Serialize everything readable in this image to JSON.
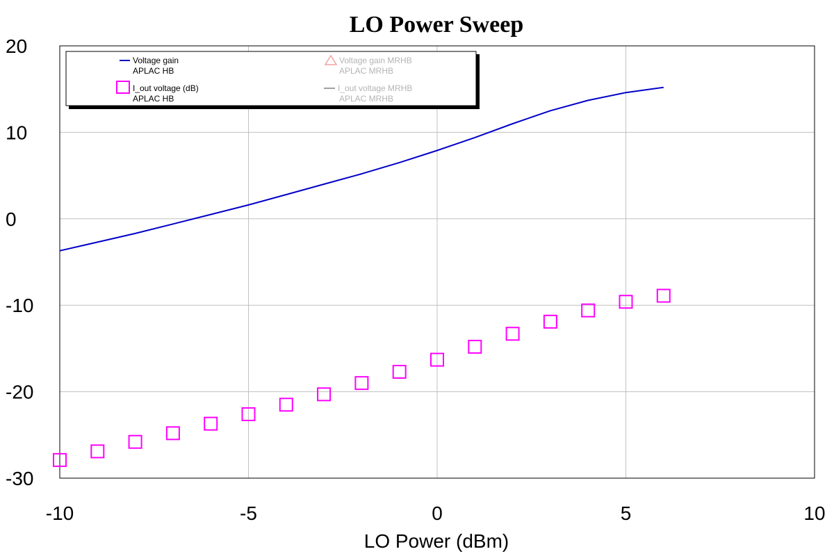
{
  "chart_data": {
    "type": "line",
    "title": "LO Power Sweep",
    "xlabel": "LO Power (dBm)",
    "ylabel": "",
    "xlim": [
      -10,
      10
    ],
    "ylim": [
      -30,
      20
    ],
    "xticks": [
      -10,
      -5,
      0,
      5,
      10
    ],
    "yticks": [
      -30,
      -20,
      -10,
      0,
      10,
      20
    ],
    "xtick_labels": [
      "-10",
      "-5",
      "0",
      "5",
      "10"
    ],
    "ytick_labels": [
      "-30",
      "-20",
      "-10",
      "0",
      "10",
      "20"
    ],
    "grid": true,
    "legend_placement": "top-left",
    "series": [
      {
        "name": "Voltage gain",
        "sub": "APLAC HB",
        "style": "line",
        "color": "#0000c8",
        "x": [
          -10,
          -9,
          -8,
          -7,
          -6,
          -5,
          -4,
          -3,
          -2,
          -1,
          0,
          1,
          2,
          3,
          4,
          5,
          6
        ],
        "y": [
          -3.7,
          -2.7,
          -1.7,
          -0.6,
          0.5,
          1.6,
          2.8,
          4.0,
          5.2,
          6.5,
          7.9,
          9.4,
          11.0,
          12.5,
          13.7,
          14.6,
          15.2
        ]
      },
      {
        "name": "I_out voltage (dB)",
        "sub": "APLAC HB",
        "style": "marker-square",
        "color": "#ff00ff",
        "x": [
          -10,
          -9,
          -8,
          -7,
          -6,
          -5,
          -4,
          -3,
          -2,
          -1,
          0,
          1,
          2,
          3,
          4,
          5,
          6
        ],
        "y": [
          -27.9,
          -26.9,
          -25.8,
          -24.8,
          -23.7,
          -22.6,
          -21.5,
          -20.3,
          -19.0,
          -17.7,
          -16.3,
          -14.8,
          -13.3,
          -11.9,
          -10.6,
          -9.6,
          -8.9
        ]
      },
      {
        "name": "Voltage gain MRHB",
        "sub": "APLAC MRHB",
        "style": "marker-triangle",
        "color": "#f4a0a0",
        "x": [],
        "y": []
      },
      {
        "name": "I_out voltage MRHB",
        "sub": "APLAC MRHB",
        "style": "line",
        "color": "#a0a0a0",
        "x": [],
        "y": []
      }
    ]
  },
  "colors": {
    "grid": "#c0c0c0",
    "legend_inactive_text": "#b4b4b4"
  }
}
